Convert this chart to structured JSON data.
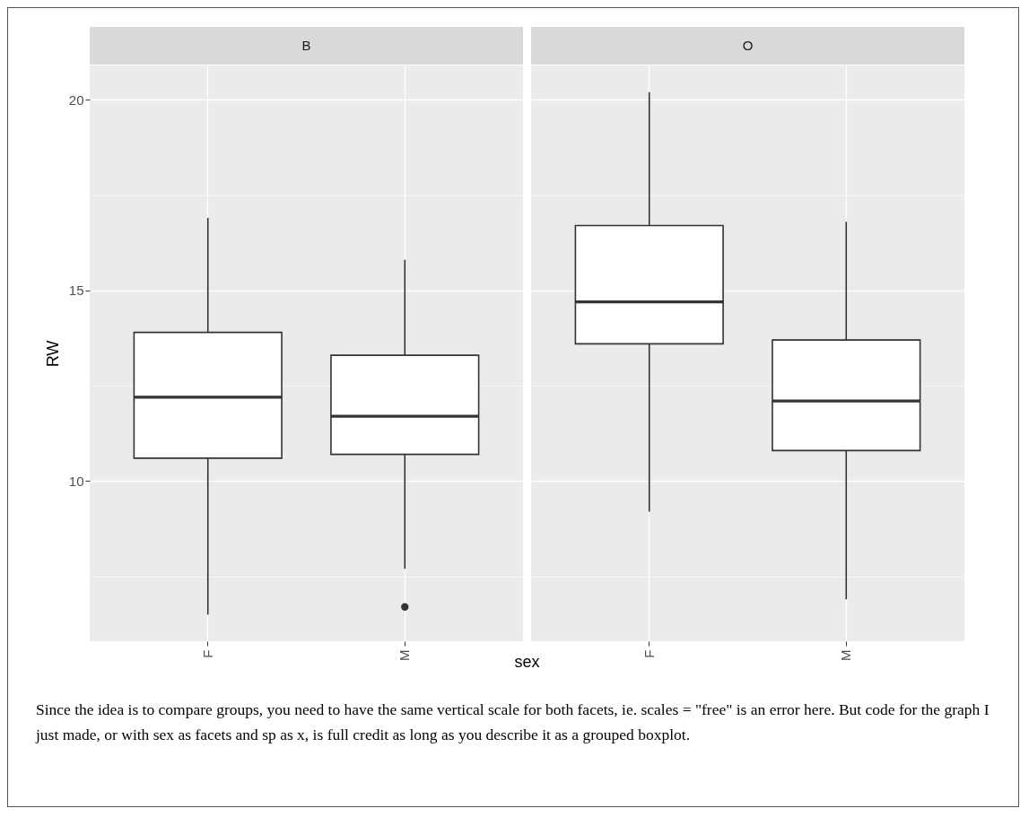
{
  "chart_data": [
    {
      "type": "box",
      "title": "B",
      "categories": [
        "F",
        "M"
      ],
      "xlabel": "sex",
      "ylabel": "RW",
      "ylim": [
        5.8,
        20.9
      ],
      "yticks": [
        {
          "value": 7.5,
          "label": null
        },
        10,
        {
          "value": 12.5,
          "label": null
        },
        15,
        {
          "value": 17.5,
          "label": null
        },
        20
      ],
      "grid": true,
      "boxes": [
        {
          "low": 6.5,
          "q1": 10.6,
          "median": 12.2,
          "q3": 13.9,
          "high": 16.9
        },
        {
          "low": 7.7,
          "q1": 10.7,
          "median": 11.7,
          "q3": 13.3,
          "high": 15.8,
          "outliers": [
            6.7
          ]
        }
      ],
      "annotations": [
        "Since the idea is to compare groups, you need to have the same vertical scale for both facets, ie. scales = \"free\" is an error here. But code for the graph I just made, or with sex as facets and sp as x, is full credit as long as you describe it as a grouped boxplot."
      ]
    },
    {
      "type": "box",
      "title": "O",
      "categories": [
        "F",
        "M"
      ],
      "ylim": [
        5.8,
        20.9
      ],
      "yticks": [
        {
          "value": 7.5,
          "label": null
        },
        10,
        {
          "value": 12.5,
          "label": null
        },
        15,
        {
          "value": 17.5,
          "label": null
        },
        20
      ],
      "grid": true,
      "tick_labels": "x",
      "boxes": [
        {
          "low": 9.2,
          "q1": 13.6,
          "median": 14.7,
          "q3": 16.7,
          "high": 20.2
        },
        {
          "low": 6.9,
          "q1": 10.8,
          "median": 12.1,
          "q3": 13.7,
          "high": 16.8
        }
      ]
    }
  ]
}
